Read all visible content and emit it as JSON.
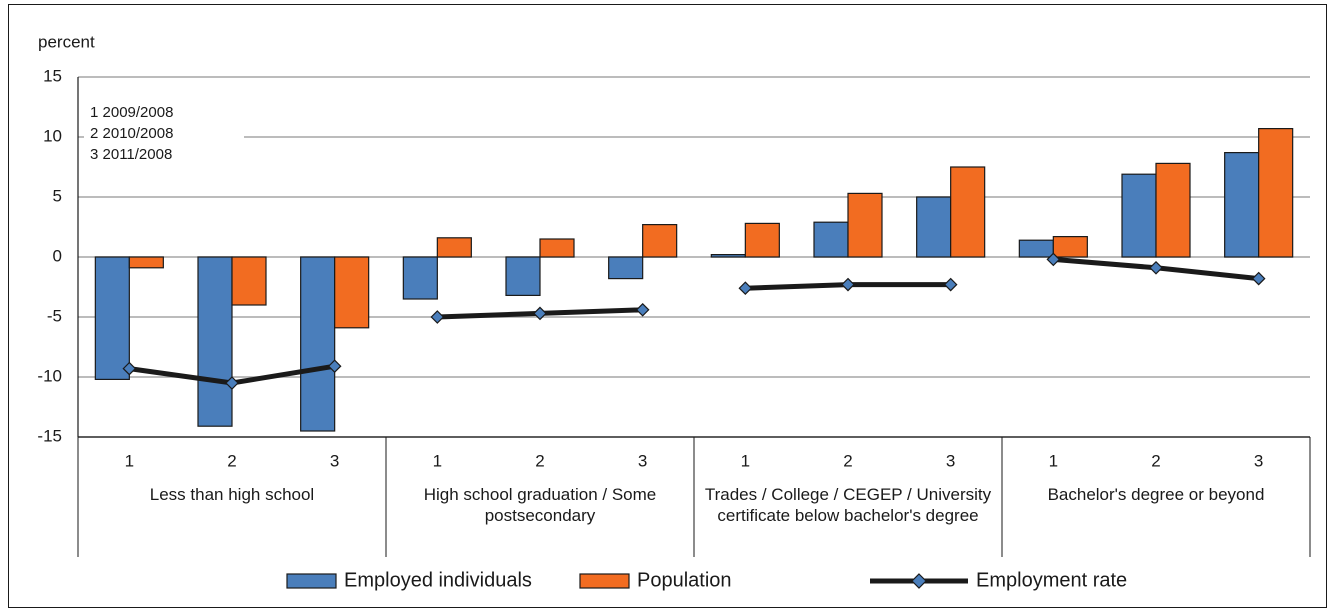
{
  "chart_data": {
    "type": "bar",
    "y_label": "percent",
    "annotations": [
      "1  2009/2008",
      "2  2010/2008",
      "3  2011/2008"
    ],
    "groups": [
      "Less than high school",
      "High school graduation / Some postsecondary",
      "Trades / College / CEGEP / University certificate below bachelor's degree",
      "Bachelor's degree or beyond"
    ],
    "categories": [
      "1",
      "2",
      "3",
      "1",
      "2",
      "3",
      "1",
      "2",
      "3",
      "1",
      "2",
      "3"
    ],
    "series": [
      {
        "name": "Employed individuals",
        "type": "bar",
        "color": "#4a7ebb",
        "values": [
          -10.2,
          -14.1,
          -14.5,
          -3.5,
          -3.2,
          -1.8,
          0.2,
          2.9,
          5.0,
          1.4,
          6.9,
          8.7
        ]
      },
      {
        "name": "Population",
        "type": "bar",
        "color": "#f26c21",
        "values": [
          -0.9,
          -4.0,
          -5.9,
          1.6,
          1.5,
          2.7,
          2.8,
          5.3,
          7.5,
          1.7,
          7.8,
          10.7
        ]
      },
      {
        "name": "Employment rate",
        "type": "line",
        "color": "#1a1a1a",
        "marker_color": "#4a7ebb",
        "values": [
          -9.3,
          -10.5,
          -9.1,
          -5.0,
          -4.7,
          -4.4,
          -2.6,
          -2.3,
          -2.3,
          -0.2,
          -0.9,
          -1.8
        ]
      }
    ],
    "ylim": [
      -15,
      15
    ],
    "yticks": [
      -15,
      -10,
      -5,
      0,
      5,
      10,
      15
    ],
    "grid": true
  }
}
